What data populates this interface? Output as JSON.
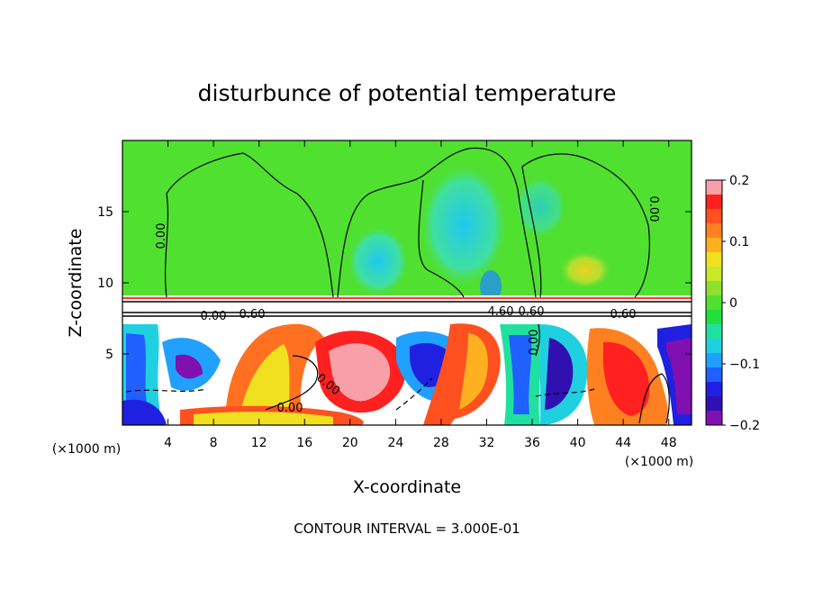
{
  "chart_data": {
    "type": "heatmap",
    "title": "disturbunce of potential temperature",
    "xlabel": "X-coordinate",
    "ylabel": "Z-coordinate",
    "x_unit_label": "(×1000 m)",
    "y_unit_label": "(×1000 m)",
    "footer": "CONTOUR INTERVAL = 3.000E-01",
    "xlim": [
      0,
      50
    ],
    "ylim": [
      0,
      20
    ],
    "x_ticks": [
      4,
      8,
      12,
      16,
      20,
      24,
      28,
      32,
      36,
      40,
      44,
      48
    ],
    "y_ticks": [
      5,
      10,
      15
    ],
    "colorbar": {
      "range": [
        -0.2,
        0.2
      ],
      "tick_values": [
        0.2,
        0.1,
        0,
        -0.1,
        -0.2
      ],
      "tick_labels": [
        "0.2",
        "0.1",
        "0",
        "−0.1",
        "−0.2"
      ],
      "colors": [
        "#f8a0a8",
        "#ff2020",
        "#ff5020",
        "#ff8020",
        "#ffb020",
        "#f0e020",
        "#c8e828",
        "#90e030",
        "#50e030",
        "#20e040",
        "#20e0a0",
        "#20d0e0",
        "#20a0ff",
        "#2060ff",
        "#2020e0",
        "#3010b0",
        "#8010b0"
      ]
    },
    "contour_labels": [
      "0.00",
      "0.00",
      "0.00",
      "0.60",
      "0.60",
      "0.60",
      "4.60",
      "0.00",
      "0.00",
      "0.00"
    ],
    "bands": {
      "upper_layer_z": [
        9.0,
        20.0
      ],
      "inversion_z": [
        7.8,
        9.0
      ],
      "lower_layer_z": [
        0.0,
        7.8
      ]
    }
  }
}
